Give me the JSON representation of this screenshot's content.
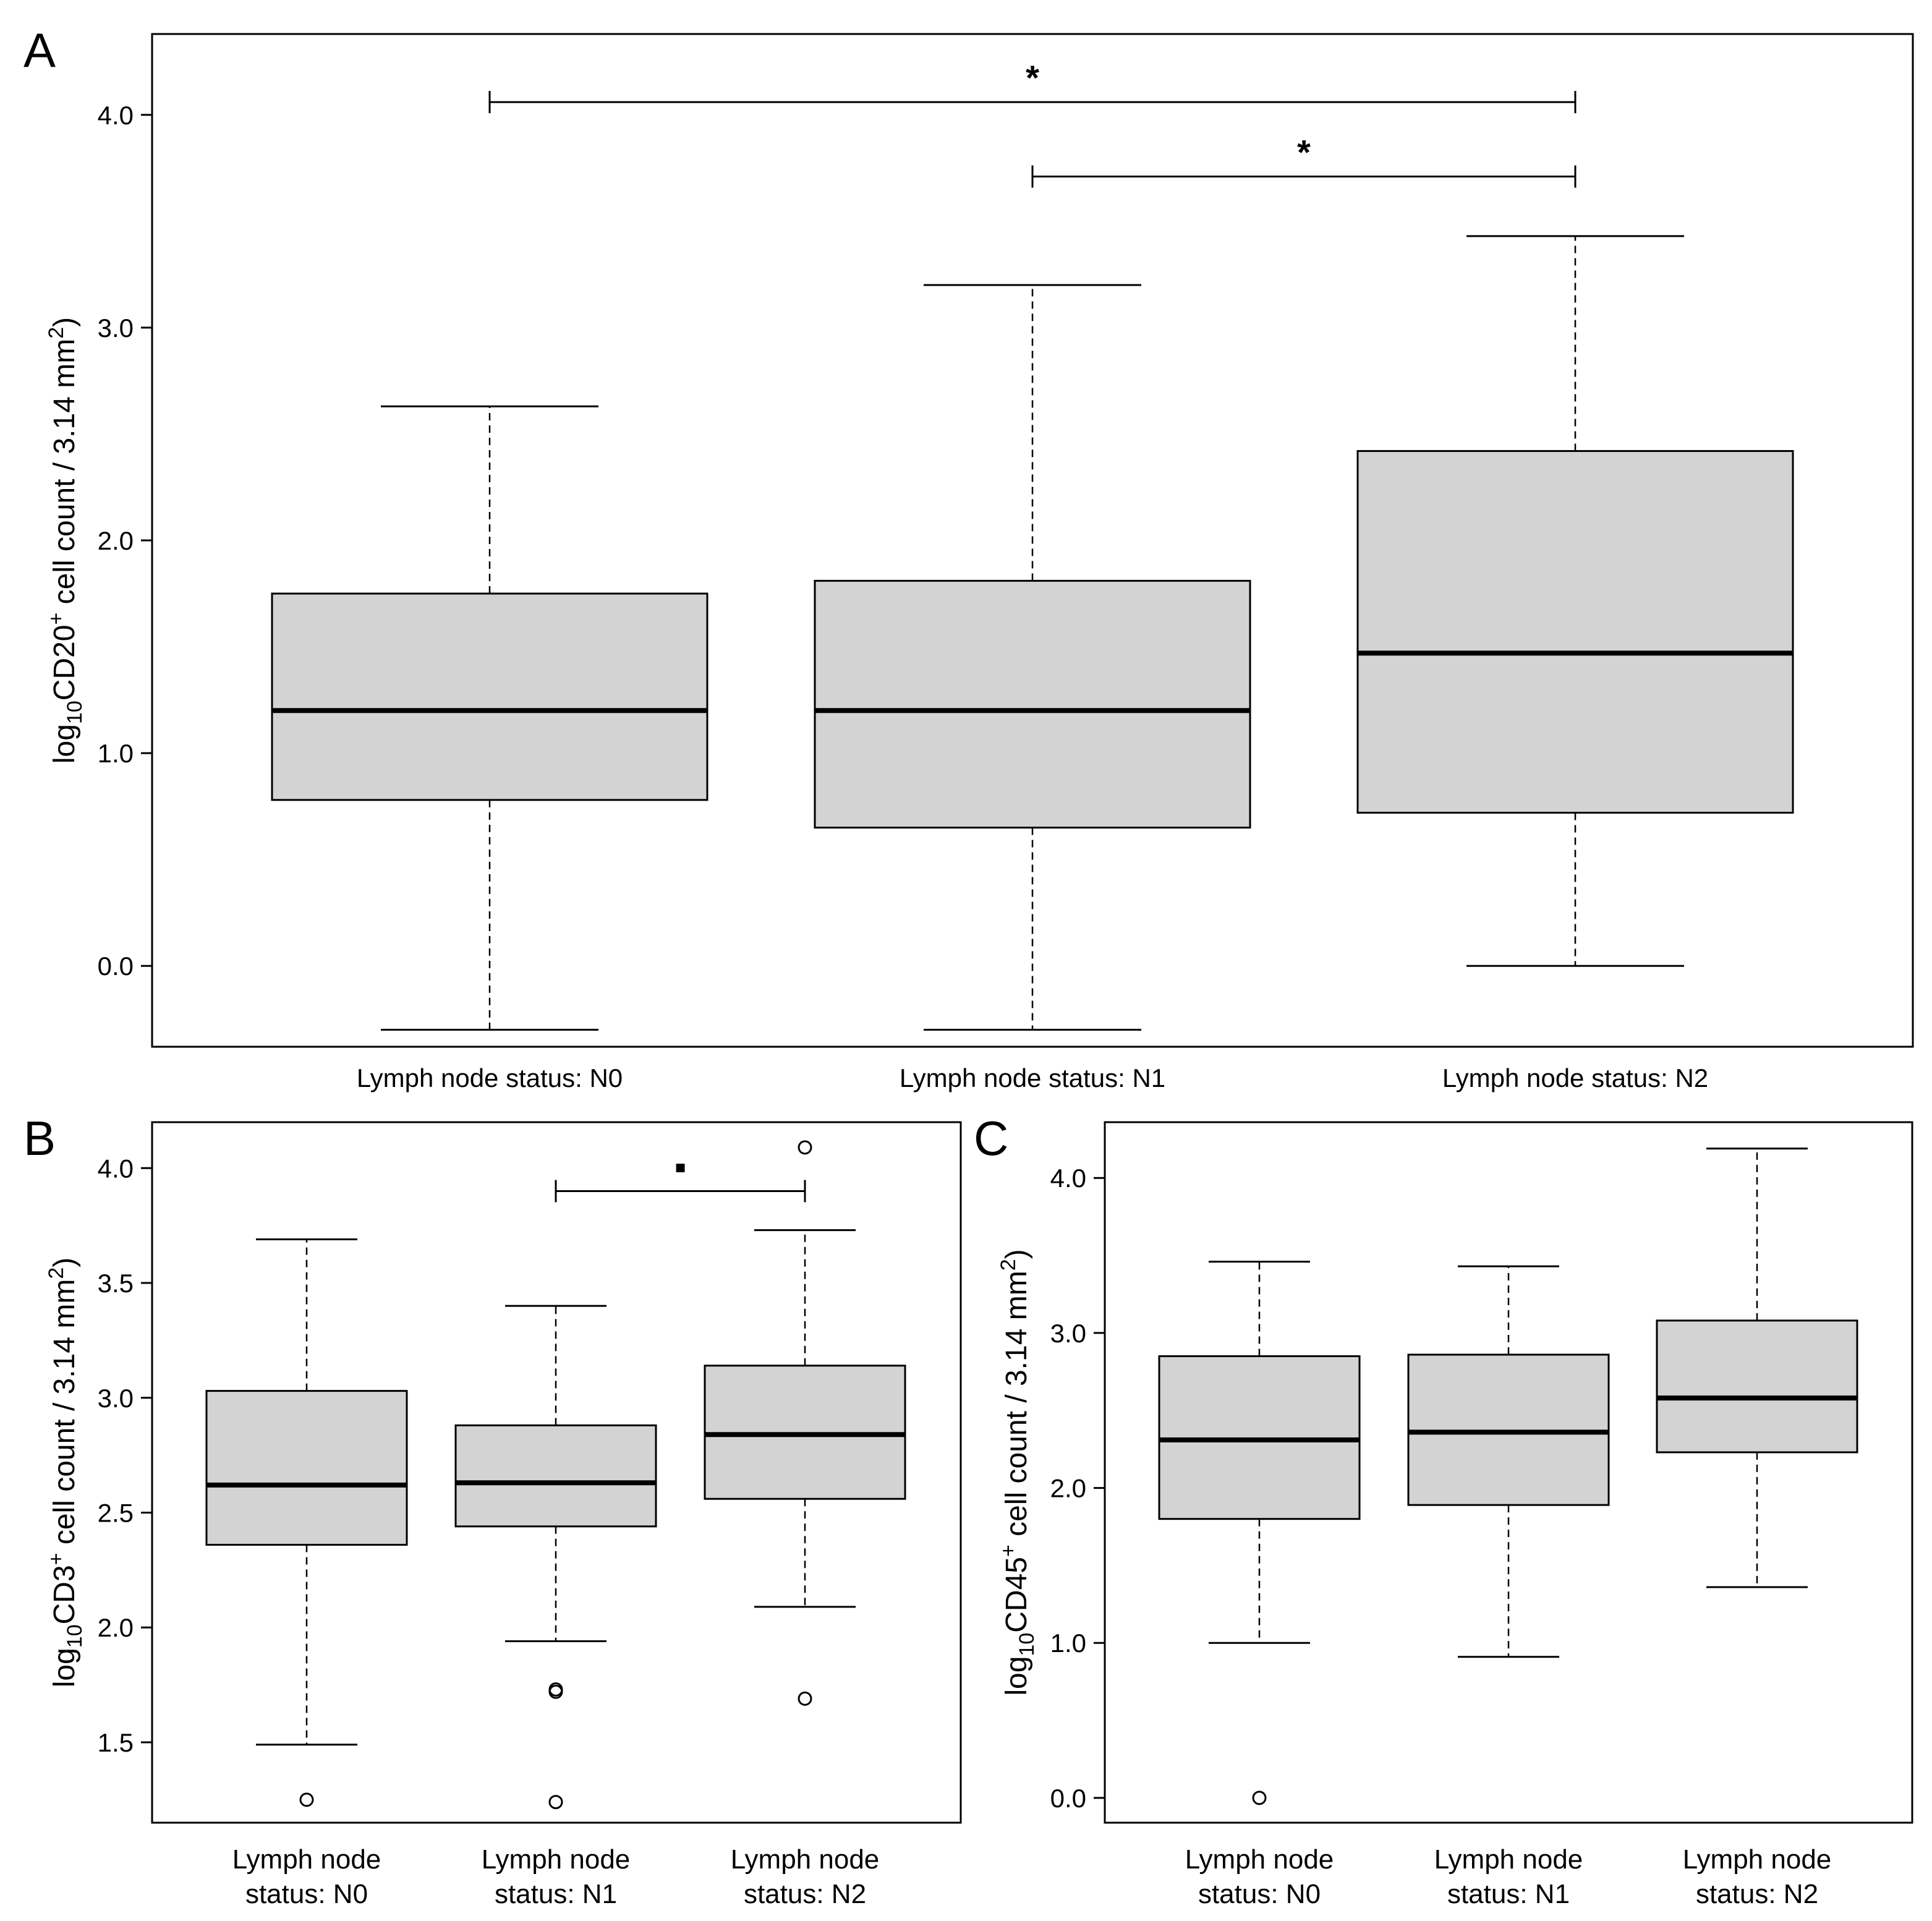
{
  "chart_data": [
    {
      "panel": "A",
      "type": "boxplot",
      "ylabel": {
        "prefix": "log",
        "sub": "10",
        "marker": "CD20",
        "sup": "+",
        "rest": " cell count / 3.14 mm",
        "unit_sup": "2",
        "close": ")"
      },
      "ylim": [
        -0.38,
        4.38
      ],
      "yticks": [
        0.0,
        1.0,
        2.0,
        3.0,
        4.0
      ],
      "ytick_labels": [
        "0.0",
        "1.0",
        "2.0",
        "3.0",
        "4.0"
      ],
      "categories": [
        "Lymph node status: N0",
        "Lymph node status: N1",
        "Lymph node status: N2"
      ],
      "boxes": [
        {
          "whisker_low": -0.3,
          "q1": 0.78,
          "median": 1.2,
          "q3": 1.75,
          "whisker_high": 2.63,
          "outliers": []
        },
        {
          "whisker_low": -0.3,
          "q1": 0.65,
          "median": 1.2,
          "q3": 1.81,
          "whisker_high": 3.2,
          "outliers": []
        },
        {
          "whisker_low": 0.0,
          "q1": 0.72,
          "median": 1.47,
          "q3": 2.42,
          "whisker_high": 3.43,
          "outliers": []
        }
      ],
      "significance": [
        {
          "from": 0,
          "to": 2,
          "y": 4.06,
          "label": "*"
        },
        {
          "from": 1,
          "to": 2,
          "y": 3.71,
          "label": "*"
        }
      ]
    },
    {
      "panel": "B",
      "type": "boxplot",
      "ylabel": {
        "prefix": "log",
        "sub": "10",
        "marker": "CD3",
        "sup": "+",
        "rest": " cell count / 3.14 mm",
        "unit_sup": "2",
        "close": ")"
      },
      "ylim": [
        1.15,
        4.2
      ],
      "yticks": [
        1.5,
        2.0,
        2.5,
        3.0,
        3.5,
        4.0
      ],
      "ytick_labels": [
        "1.5",
        "2.0",
        "2.5",
        "3.0",
        "3.5",
        "4.0"
      ],
      "categories": [
        [
          "Lymph node",
          "status: N0"
        ],
        [
          "Lymph node",
          "status: N1"
        ],
        [
          "Lymph node",
          "status: N2"
        ]
      ],
      "boxes": [
        {
          "whisker_low": 1.49,
          "q1": 2.36,
          "median": 2.62,
          "q3": 3.03,
          "whisker_high": 3.69,
          "outliers": [
            1.25
          ]
        },
        {
          "whisker_low": 1.94,
          "q1": 2.44,
          "median": 2.63,
          "q3": 2.88,
          "whisker_high": 3.4,
          "outliers": [
            1.72,
            1.73,
            1.24
          ]
        },
        {
          "whisker_low": 2.09,
          "q1": 2.56,
          "median": 2.84,
          "q3": 3.14,
          "whisker_high": 3.73,
          "outliers": [
            4.09,
            1.69
          ]
        }
      ],
      "significance": [
        {
          "from": 1,
          "to": 2,
          "y": 3.9,
          "label": "▪"
        }
      ]
    },
    {
      "panel": "C",
      "type": "boxplot",
      "ylabel": {
        "prefix": "log",
        "sub": "10",
        "marker": "CD45",
        "sup": "+",
        "rest": " cell count / 3.14 mm",
        "unit_sup": "2",
        "close": ")"
      },
      "ylim": [
        -0.16,
        4.36
      ],
      "yticks": [
        0.0,
        1.0,
        2.0,
        3.0,
        4.0
      ],
      "ytick_labels": [
        "0.0",
        "1.0",
        "2.0",
        "3.0",
        "4.0"
      ],
      "categories": [
        [
          "Lymph node",
          "status: N0"
        ],
        [
          "Lymph node",
          "status: N1"
        ],
        [
          "Lymph node",
          "status: N2"
        ]
      ],
      "boxes": [
        {
          "whisker_low": 1.0,
          "q1": 1.8,
          "median": 2.31,
          "q3": 2.85,
          "whisker_high": 3.46,
          "outliers": [
            0.0
          ]
        },
        {
          "whisker_low": 0.91,
          "q1": 1.89,
          "median": 2.36,
          "q3": 2.86,
          "whisker_high": 3.43,
          "outliers": []
        },
        {
          "whisker_low": 1.36,
          "q1": 2.23,
          "median": 2.58,
          "q3": 3.08,
          "whisker_high": 4.19,
          "outliers": []
        }
      ],
      "significance": []
    }
  ],
  "colors": {
    "box_fill": "#d3d3d3",
    "stroke": "#000000",
    "background": "#ffffff"
  }
}
